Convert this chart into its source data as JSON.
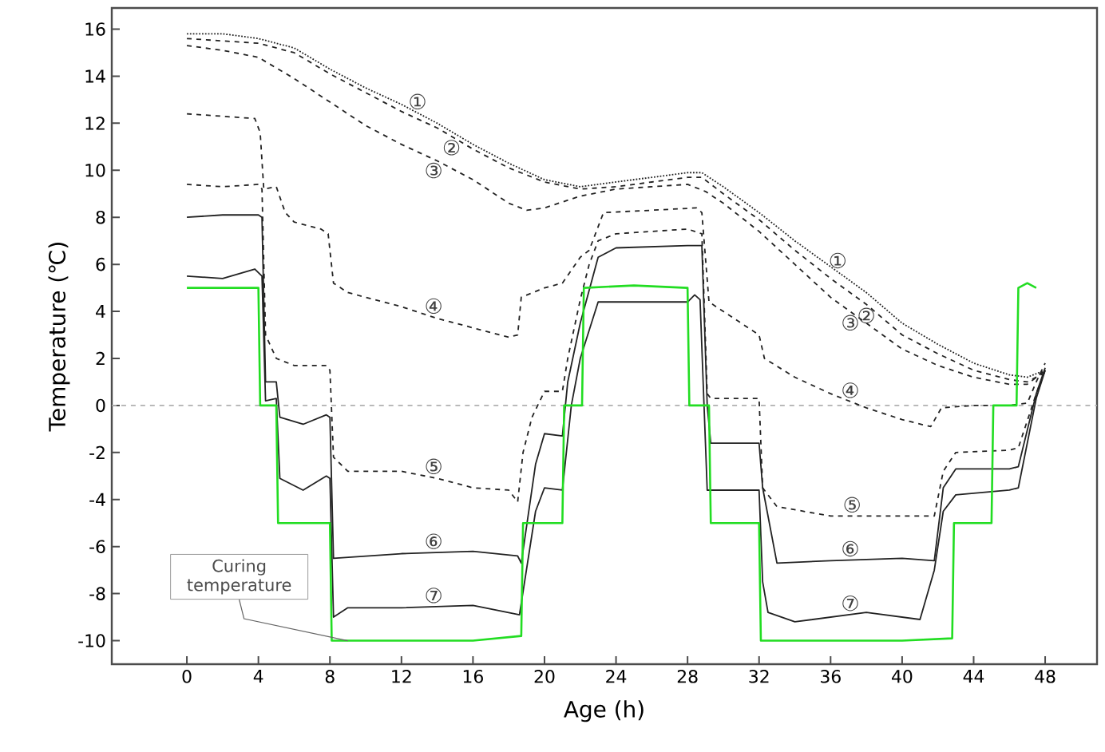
{
  "chart_data": {
    "type": "line",
    "xlabel": "Age (h)",
    "ylabel": "Temperature (℃)",
    "xlim": [
      -4.2,
      50.9
    ],
    "ylim": [
      -11,
      16.9
    ],
    "xticks": [
      0,
      4,
      8,
      12,
      16,
      20,
      24,
      28,
      32,
      36,
      40,
      44,
      48
    ],
    "yticks": [
      -10,
      -8,
      -6,
      -4,
      -2,
      0,
      2,
      4,
      6,
      8,
      10,
      12,
      14,
      16
    ],
    "ref_lines": [
      {
        "axis": "y",
        "value": 0,
        "color": "#b0b0b0",
        "line_style": "dashed"
      }
    ],
    "series": [
      {
        "name": "①",
        "color": "#222222",
        "line_style": "dotted",
        "x": [
          0,
          2,
          4,
          6,
          8,
          10,
          12,
          14,
          16,
          18,
          20,
          22,
          24,
          26,
          28,
          28.8,
          30,
          32,
          34,
          36,
          38,
          40,
          42,
          44,
          46,
          47,
          48
        ],
        "values": [
          15.8,
          15.8,
          15.6,
          15.2,
          14.3,
          13.5,
          12.8,
          12.0,
          11.1,
          10.3,
          9.6,
          9.3,
          9.5,
          9.7,
          9.9,
          9.9,
          9.3,
          8.2,
          7.0,
          5.9,
          4.8,
          3.5,
          2.6,
          1.8,
          1.3,
          1.2,
          1.5
        ]
      },
      {
        "name": "②",
        "color": "#222222",
        "line_style": "dashed",
        "x": [
          0,
          2,
          4,
          6,
          8,
          10,
          12,
          14,
          16,
          18,
          20,
          22,
          24,
          26,
          28,
          28.8,
          30,
          32,
          34,
          36,
          38,
          40,
          42,
          44,
          46,
          47,
          48
        ],
        "values": [
          15.6,
          15.5,
          15.4,
          15.0,
          14.1,
          13.3,
          12.5,
          11.8,
          10.9,
          10.1,
          9.5,
          9.2,
          9.3,
          9.5,
          9.7,
          9.7,
          9.0,
          7.9,
          6.6,
          5.4,
          4.3,
          3.0,
          2.2,
          1.5,
          1.1,
          1.0,
          1.4
        ]
      },
      {
        "name": "③",
        "color": "#222222",
        "line_style": "dashed",
        "x": [
          0,
          2,
          4,
          6,
          8,
          10,
          12,
          14,
          16,
          18,
          19,
          20,
          22,
          24,
          26,
          28,
          29,
          30,
          32,
          34,
          36,
          38,
          40,
          42,
          44,
          46,
          47,
          48
        ],
        "values": [
          15.3,
          15.1,
          14.8,
          13.9,
          12.9,
          11.9,
          11.1,
          10.4,
          9.6,
          8.6,
          8.3,
          8.4,
          8.9,
          9.2,
          9.3,
          9.4,
          9.1,
          8.6,
          7.4,
          6.0,
          4.6,
          3.5,
          2.4,
          1.7,
          1.2,
          0.9,
          0.9,
          1.5
        ]
      },
      {
        "name": "④",
        "color": "#222222",
        "line_style": "dashed",
        "x": [
          0,
          3.8,
          4.1,
          4.3,
          5,
          5.5,
          6,
          7.5,
          7.9,
          8.2,
          9,
          12,
          14,
          16,
          18,
          18.5,
          18.7,
          20,
          21,
          22,
          22.5,
          23.3,
          26,
          28.5,
          28.8,
          29.2,
          32,
          32.3,
          34,
          36,
          38,
          40,
          41.6,
          42.2,
          44,
          46,
          47,
          47.5,
          48
        ],
        "values": [
          12.4,
          12.2,
          11.6,
          9.2,
          9.3,
          8.2,
          7.8,
          7.5,
          7.3,
          5.2,
          4.8,
          4.2,
          3.7,
          3.3,
          2.9,
          3.0,
          4.6,
          5.0,
          5.2,
          6.3,
          6.6,
          8.2,
          8.3,
          8.4,
          8.2,
          4.4,
          3.0,
          2.0,
          1.2,
          0.5,
          -0.1,
          -0.6,
          -0.9,
          -0.1,
          0.0,
          0.0,
          0.1,
          1.0,
          1.8
        ]
      },
      {
        "name": "⑤",
        "color": "#222222",
        "line_style": "dashed",
        "x": [
          0,
          2,
          4,
          4.2,
          4.4,
          5,
          6,
          7.8,
          8.0,
          8.2,
          9,
          12,
          14,
          16,
          18,
          18.5,
          18.8,
          19.3,
          20,
          21,
          21.3,
          22,
          22.5,
          23,
          24,
          26,
          28,
          28.8,
          29.1,
          29.3,
          32,
          32.2,
          33,
          36,
          40,
          41.8,
          42.3,
          43,
          46,
          46.5,
          47.5,
          48
        ],
        "values": [
          9.4,
          9.3,
          9.4,
          9.2,
          3.0,
          2.0,
          1.7,
          1.7,
          1.5,
          -2.2,
          -2.8,
          -2.8,
          -3.1,
          -3.5,
          -3.6,
          -4.1,
          -2.0,
          -0.5,
          0.6,
          0.6,
          2.0,
          4.5,
          6.0,
          7.0,
          7.3,
          7.4,
          7.5,
          7.3,
          0.5,
          0.3,
          0.3,
          -3.5,
          -4.3,
          -4.7,
          -4.7,
          -4.7,
          -2.8,
          -2.0,
          -1.9,
          -1.8,
          0.5,
          1.5
        ]
      },
      {
        "name": "⑥",
        "color": "#222222",
        "line_style": "solid",
        "x": [
          0,
          2,
          4,
          4.2,
          4.4,
          5,
          5.2,
          6.5,
          7.8,
          8.0,
          8.2,
          12,
          16,
          18.5,
          18.7,
          19.5,
          20,
          21,
          21.3,
          22,
          23,
          24,
          28,
          28.8,
          29.1,
          29.3,
          32,
          32.2,
          33,
          36,
          40,
          41.8,
          42.3,
          43,
          46,
          46.5,
          47.5,
          48
        ],
        "values": [
          8.0,
          8.1,
          8.1,
          8.0,
          1.0,
          1.0,
          -0.5,
          -0.8,
          -0.4,
          -0.5,
          -6.5,
          -6.3,
          -6.2,
          -6.4,
          -6.7,
          -2.5,
          -1.2,
          -1.3,
          1.0,
          3.5,
          6.3,
          6.7,
          6.8,
          6.8,
          0.0,
          -1.6,
          -1.6,
          -3.5,
          -6.7,
          -6.6,
          -6.5,
          -6.6,
          -3.5,
          -2.7,
          -2.7,
          -2.6,
          0.5,
          1.6
        ]
      },
      {
        "name": "⑦",
        "color": "#222222",
        "line_style": "solid",
        "x": [
          0,
          2,
          3.8,
          4.2,
          4.4,
          5,
          5.2,
          6.5,
          7.8,
          8.0,
          8.2,
          9,
          12,
          16,
          18.6,
          19.5,
          20,
          21,
          21.5,
          22,
          23,
          28,
          28.4,
          28.7,
          29.1,
          32,
          32.2,
          32.5,
          34,
          38,
          41,
          41.8,
          42.3,
          43,
          46,
          46.5,
          47.5,
          48
        ],
        "values": [
          5.5,
          5.4,
          5.8,
          5.5,
          0.2,
          0.3,
          -3.1,
          -3.6,
          -3.0,
          -3.1,
          -9.0,
          -8.6,
          -8.6,
          -8.5,
          -8.9,
          -4.5,
          -3.5,
          -3.6,
          0.0,
          2.0,
          4.4,
          4.4,
          4.7,
          4.5,
          -3.6,
          -3.6,
          -7.5,
          -8.8,
          -9.2,
          -8.8,
          -9.1,
          -7.0,
          -4.5,
          -3.8,
          -3.6,
          -3.5,
          0.3,
          1.5
        ]
      },
      {
        "color": "#22dd22",
        "line_style": "solid",
        "x": [
          0,
          2,
          4.0,
          4.1,
          5.0,
          5.1,
          8.0,
          8.1,
          12,
          16,
          18.7,
          18.8,
          21.0,
          21.1,
          22.1,
          22.2,
          25,
          28.0,
          28.1,
          29.2,
          29.3,
          32.0,
          32.1,
          36,
          40,
          42.8,
          42.9,
          45.0,
          45.1,
          46.4,
          46.5,
          47,
          47.5
        ],
        "values": [
          5.0,
          5.0,
          5.0,
          0.0,
          0.0,
          -5.0,
          -5.0,
          -10.0,
          -10.0,
          -10.0,
          -9.8,
          -5.0,
          -5.0,
          0.0,
          0.0,
          5.0,
          5.1,
          5.0,
          0.0,
          0.0,
          -5.0,
          -5.0,
          -10.0,
          -10.0,
          -10.0,
          -9.9,
          -5.0,
          -5.0,
          0.0,
          0.0,
          5.0,
          5.2,
          5.0
        ]
      }
    ],
    "annotations": [
      {
        "text": "Curing temperature",
        "x": 9.0,
        "y": -10.0
      }
    ]
  }
}
